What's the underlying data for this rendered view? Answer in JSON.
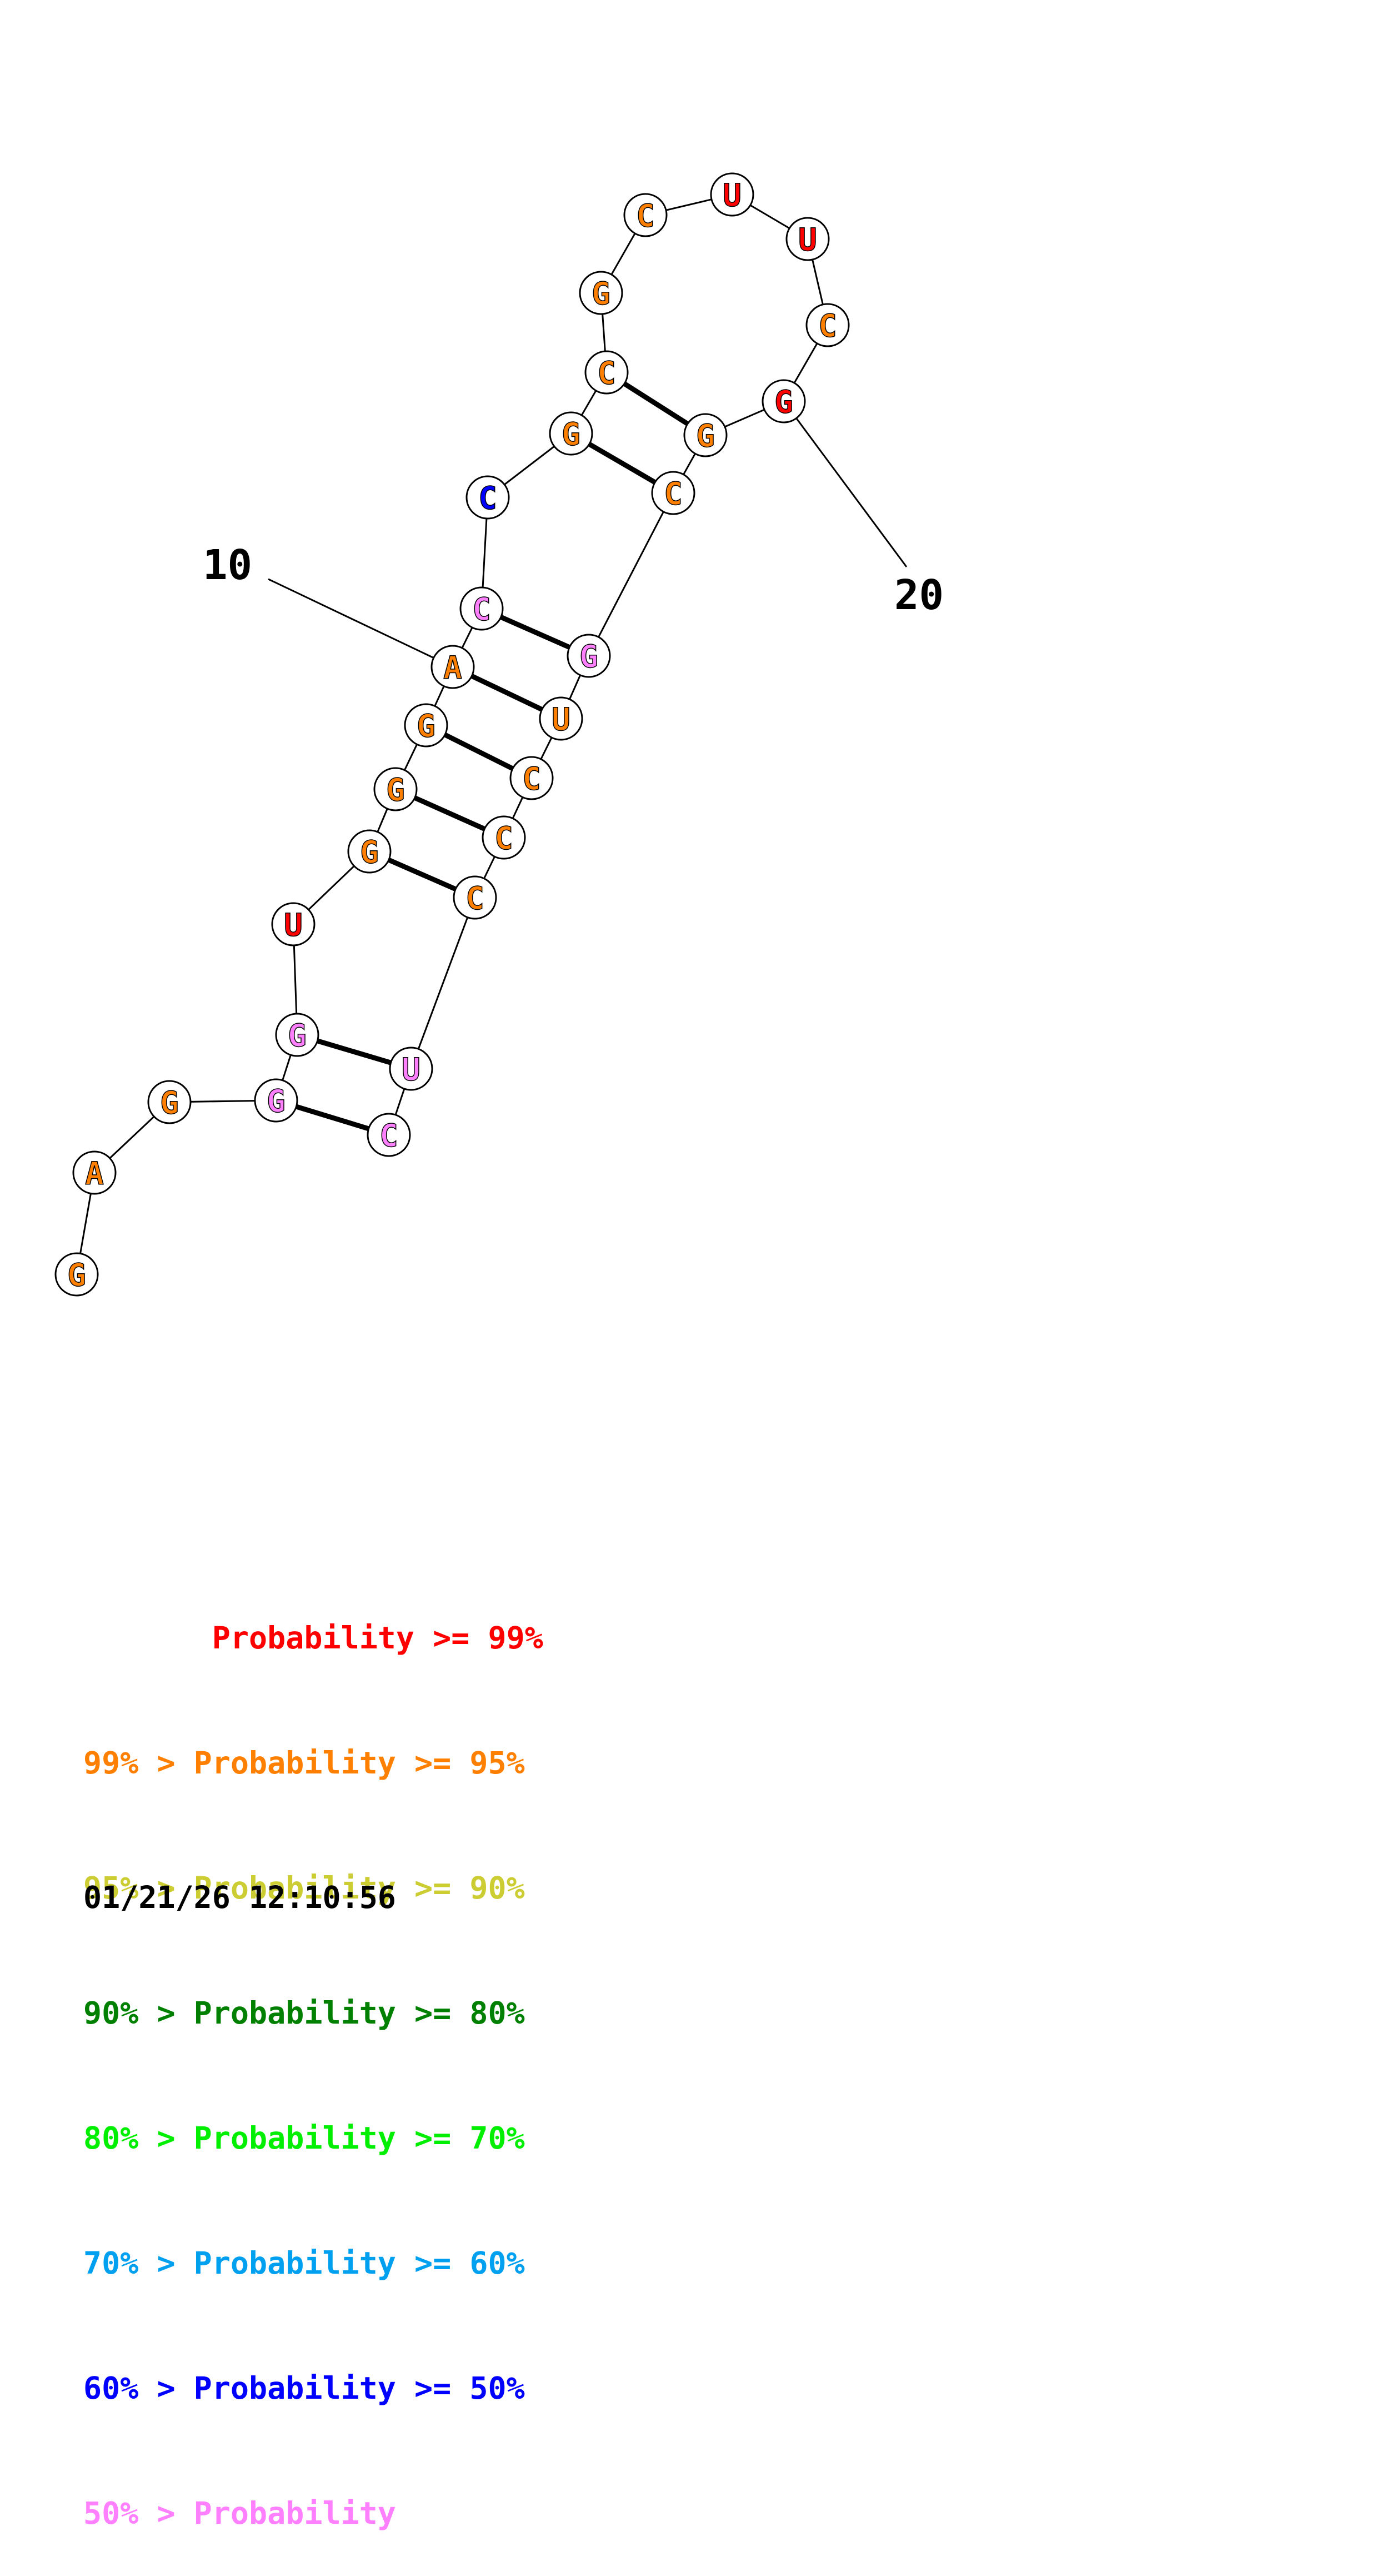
{
  "colors": {
    "p99": "#ff0000",
    "p95": "#ff8000",
    "p90": "#cccc33",
    "p80": "#008000",
    "p70": "#00ee00",
    "p60": "#00a0f0",
    "p50": "#0000ff",
    "plow": "#ff80ff"
  },
  "structure": {
    "nucleotides": [
      {
        "index": 1,
        "base": "G",
        "color_key": "p95"
      },
      {
        "index": 2,
        "base": "A",
        "color_key": "p95"
      },
      {
        "index": 3,
        "base": "G",
        "color_key": "p95"
      },
      {
        "index": 4,
        "base": "G",
        "color_key": "plow"
      },
      {
        "index": 5,
        "base": "G",
        "color_key": "plow"
      },
      {
        "index": 6,
        "base": "U",
        "color_key": "p99"
      },
      {
        "index": 7,
        "base": "G",
        "color_key": "p95"
      },
      {
        "index": 8,
        "base": "G",
        "color_key": "p95"
      },
      {
        "index": 9,
        "base": "G",
        "color_key": "p95"
      },
      {
        "index": 10,
        "base": "A",
        "color_key": "p95"
      },
      {
        "index": 11,
        "base": "C",
        "color_key": "plow"
      },
      {
        "index": 12,
        "base": "C",
        "color_key": "p50"
      },
      {
        "index": 13,
        "base": "G",
        "color_key": "p95"
      },
      {
        "index": 14,
        "base": "C",
        "color_key": "p95"
      },
      {
        "index": 15,
        "base": "G",
        "color_key": "p95"
      },
      {
        "index": 16,
        "base": "C",
        "color_key": "p95"
      },
      {
        "index": 17,
        "base": "U",
        "color_key": "p99"
      },
      {
        "index": 18,
        "base": "U",
        "color_key": "p99"
      },
      {
        "index": 19,
        "base": "C",
        "color_key": "p95"
      },
      {
        "index": 20,
        "base": "G",
        "color_key": "p99"
      },
      {
        "index": 21,
        "base": "G",
        "color_key": "p95"
      },
      {
        "index": 22,
        "base": "C",
        "color_key": "p95"
      },
      {
        "index": 23,
        "base": "G",
        "color_key": "plow"
      },
      {
        "index": 24,
        "base": "U",
        "color_key": "p95"
      },
      {
        "index": 25,
        "base": "C",
        "color_key": "p95"
      },
      {
        "index": 26,
        "base": "C",
        "color_key": "p95"
      },
      {
        "index": 27,
        "base": "C",
        "color_key": "p95"
      },
      {
        "index": 28,
        "base": "U",
        "color_key": "plow"
      },
      {
        "index": 29,
        "base": "C",
        "color_key": "plow"
      }
    ],
    "pairs": [
      [
        4,
        29
      ],
      [
        5,
        28
      ],
      [
        7,
        27
      ],
      [
        8,
        26
      ],
      [
        9,
        25
      ],
      [
        10,
        24
      ],
      [
        11,
        23
      ],
      [
        13,
        22
      ],
      [
        14,
        21
      ]
    ],
    "position_labels": [
      {
        "text": "10",
        "index": 10
      },
      {
        "text": "20",
        "index": 20
      }
    ]
  },
  "legend": [
    {
      "text": "       Probability >= 99%",
      "color_key": "p99"
    },
    {
      "text": "99% > Probability >= 95%",
      "color_key": "p95"
    },
    {
      "text": "95% > Probability >= 90%",
      "color_key": "p90"
    },
    {
      "text": "90% > Probability >= 80%",
      "color_key": "p80"
    },
    {
      "text": "80% > Probability >= 70%",
      "color_key": "p70"
    },
    {
      "text": "70% > Probability >= 60%",
      "color_key": "p60"
    },
    {
      "text": "60% > Probability >= 50%",
      "color_key": "p50"
    },
    {
      "text": "50% > Probability",
      "color_key": "plow"
    }
  ],
  "timestamp": "01/21/26 12:10:56"
}
